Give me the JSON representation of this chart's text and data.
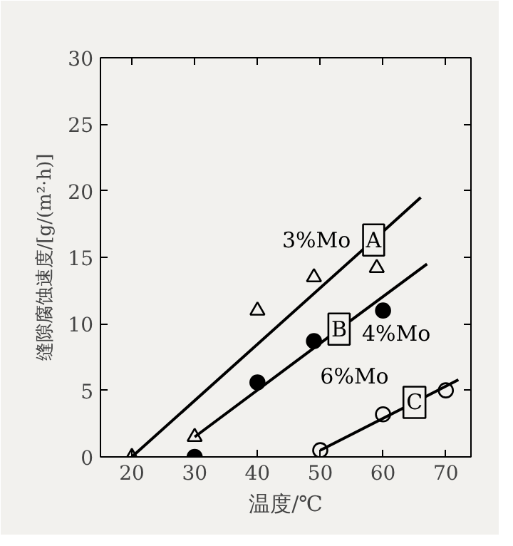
{
  "chart_data": {
    "type": "scatter",
    "xlabel": "温度/℃",
    "ylabel": "缝隙腐蚀速度/[g/(m²·h)]",
    "xlim": [
      15,
      74
    ],
    "ylim": [
      0,
      30
    ],
    "xticks": [
      20,
      30,
      40,
      50,
      60,
      70
    ],
    "yticks": [
      0,
      5,
      10,
      15,
      20,
      25,
      30
    ],
    "grid": false,
    "series": [
      {
        "marker": "triangle",
        "color": "#000000",
        "x": [
          20,
          30,
          40,
          49,
          59
        ],
        "values": [
          0,
          1.5,
          11,
          13.5,
          14.2
        ]
      },
      {
        "marker": "circle",
        "color": "#000000",
        "x": [
          30,
          40,
          49,
          60
        ],
        "values": [
          0,
          5.6,
          8.7,
          11
        ]
      },
      {
        "marker": "circle",
        "color": "#000000",
        "x": [
          50,
          60,
          70
        ],
        "values": [
          0.5,
          3.2,
          5
        ]
      },
      {
        "type": "line",
        "name": "A",
        "color": "#000000",
        "x": [
          20,
          58.5,
          66
        ],
        "values": [
          0,
          16.3,
          19.5
        ]
      },
      {
        "type": "line",
        "name": "B",
        "color": "#000000",
        "x": [
          30,
          53,
          67
        ],
        "values": [
          1.5,
          9.6,
          14.5
        ]
      },
      {
        "type": "line",
        "name": "C",
        "color": "#000000",
        "x": [
          50,
          65,
          72
        ],
        "values": [
          0.5,
          4.1,
          5.8
        ]
      }
    ],
    "annotations": [
      "3%Mo",
      "4%Mo",
      "6%Mo"
    ]
  }
}
